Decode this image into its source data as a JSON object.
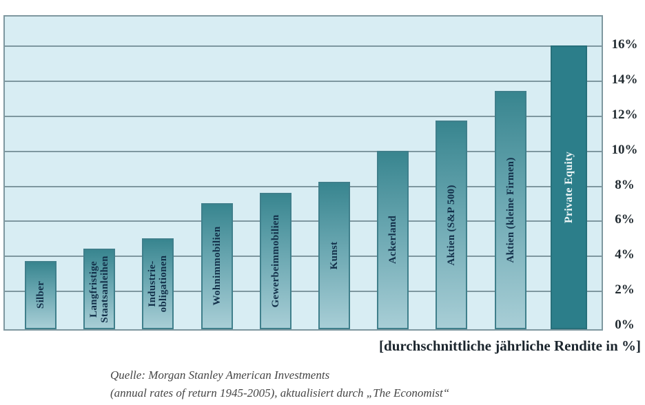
{
  "chart_data": {
    "type": "bar",
    "title": "",
    "categories": [
      "Silber",
      "Langfristige Staatsanleihen",
      "Industrie-obligationen",
      "Wohnimmobilien",
      "Gewerbeimmobilien",
      "Kunst",
      "Ackerland",
      "Aktien (S&P 500)",
      "Aktien (kleine Firmen)",
      "Private Equity"
    ],
    "values": [
      3.9,
      4.6,
      5.2,
      7.2,
      7.8,
      8.4,
      10.2,
      11.9,
      13.6,
      16.2
    ],
    "bar_label_lines": [
      [
        "Silber"
      ],
      [
        "Langfristige",
        "Staatsanleihen"
      ],
      [
        "Industrie-",
        "obligationen"
      ],
      [
        "Wohnimmobilien"
      ],
      [
        "Gewerbeimmobilien"
      ],
      [
        "Kunst"
      ],
      [
        "Ackerland"
      ],
      [
        "Aktien (S&P 500)"
      ],
      [
        "Aktien (kleine Firmen)"
      ],
      [
        "Private Equity"
      ]
    ],
    "highlight_index": 9,
    "xlabel": "[durchschnittliche jährliche Rendite in %]",
    "ylabel": "",
    "ylim": [
      0,
      17.7
    ],
    "yticks": [
      {
        "value": 0,
        "label": "0%"
      },
      {
        "value": 2,
        "label": "2%"
      },
      {
        "value": 4,
        "label": "4%"
      },
      {
        "value": 6,
        "label": "6%"
      },
      {
        "value": 8,
        "label": "8%"
      },
      {
        "value": 10,
        "label": "10%"
      },
      {
        "value": 12,
        "label": "12%"
      },
      {
        "value": 14,
        "label": "14%"
      },
      {
        "value": 16,
        "label": "16%"
      }
    ],
    "grid": true,
    "legend": "none",
    "colors": {
      "plot_background": "#d8edf3",
      "grid_line": "#7e979f",
      "bar_gradient_top": "#38858f",
      "bar_gradient_bottom": "#a8ced6",
      "bar_border": "#3f7f8b",
      "highlight_bar": "#2c7e8a",
      "bar_label_text": "#13304a",
      "highlight_label_text": "#eef6f7",
      "axis_text": "#222b31"
    }
  },
  "source": {
    "line1": "Quelle: Morgan Stanley American Investments",
    "line2": "(annual rates of return 1945-2005), aktualisiert durch „The Economist“"
  }
}
